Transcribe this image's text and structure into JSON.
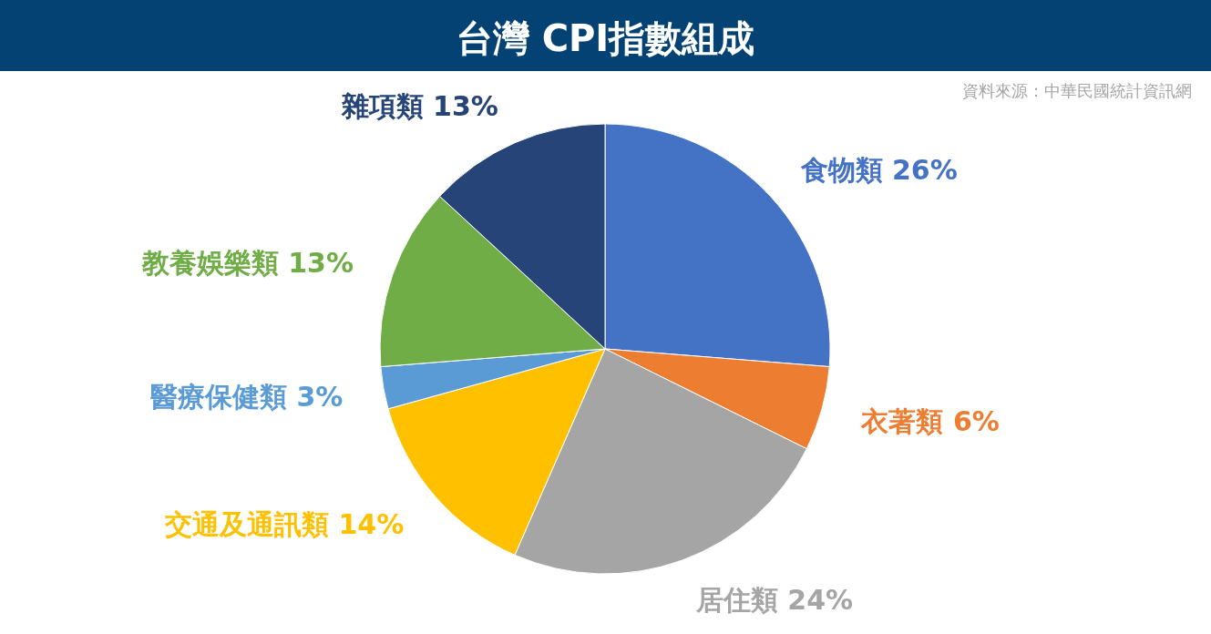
{
  "chart_data": {
    "type": "pie",
    "title": "台灣 CPI指數組成",
    "categories": [
      "食物類",
      "衣著類",
      "居住類",
      "交通及通訊類",
      "醫療保健類",
      "教養娛樂類",
      "雜項類"
    ],
    "values": [
      26,
      6,
      24,
      14,
      3,
      13,
      13
    ],
    "colors": [
      "#4472c4",
      "#ed7d31",
      "#a5a5a5",
      "#ffc000",
      "#5b9bd5",
      "#70ad47",
      "#264478"
    ],
    "value_labels": [
      "26%",
      "6%",
      "24%",
      "14%",
      "3%",
      "13%",
      "13%"
    ],
    "annotations": [
      "資料來源：中華民國統計資訊網"
    ]
  }
}
